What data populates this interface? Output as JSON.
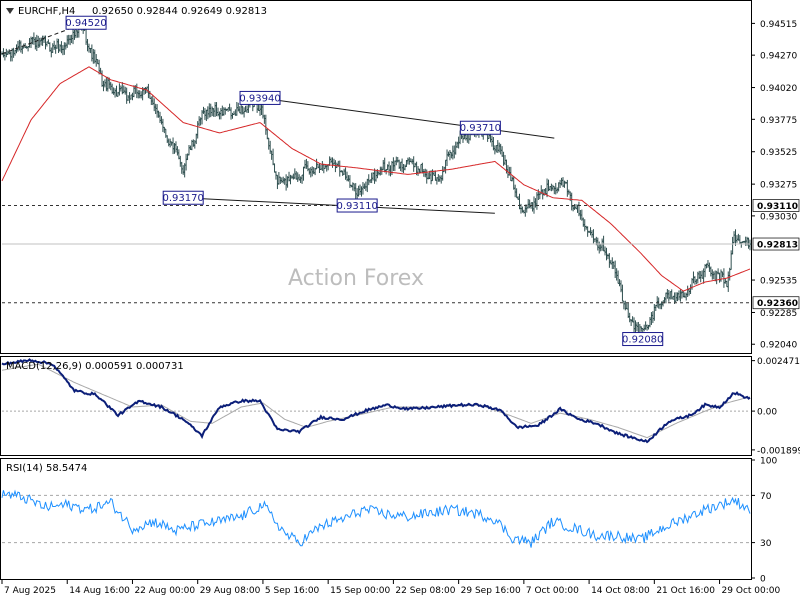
{
  "header": {
    "symbol": "EURCHF,H4",
    "ohlc": "0.92650 0.92844 0.92649 0.92813"
  },
  "watermark": "Action Forex",
  "colors": {
    "candle": "#2f4f4f",
    "ma": "#d62728",
    "macd_line": "#0b1e78",
    "macd_signal": "#a9a9a9",
    "rsi": "#1e90ff",
    "annotation": "#1a1a8c",
    "trendline": "#1a1a1a",
    "grid": "#a6a6a6"
  },
  "chart_data": [
    {
      "type": "candlestick",
      "title": "EURCHF,H4",
      "ylim": [
        0.9198,
        0.9468
      ],
      "y_ticks": [
        "0.94515",
        "0.94270",
        "0.94020",
        "0.93775",
        "0.93525",
        "0.93275",
        "0.93030",
        "0.92535",
        "0.92285",
        "0.92040"
      ],
      "x_ticks": [
        "7 Aug 2025",
        "14 Aug 16:00",
        "22 Aug 00:00",
        "29 Aug 08:00",
        "5 Sep 16:00",
        "15 Sep 00:00",
        "22 Sep 08:00",
        "29 Sep 16:00",
        "7 Oct 00:00",
        "14 Oct 08:00",
        "21 Oct 16:00",
        "29 Oct 00:00"
      ],
      "x_tick_index": [
        0,
        45,
        90,
        135,
        180,
        225,
        270,
        315,
        360,
        405,
        450,
        495
      ],
      "num_bars": 517,
      "path_anchors": [
        [
          0,
          0.9425
        ],
        [
          20,
          0.9438
        ],
        [
          40,
          0.9432
        ],
        [
          55,
          0.9449
        ],
        [
          70,
          0.9405
        ],
        [
          85,
          0.9395
        ],
        [
          100,
          0.94
        ],
        [
          115,
          0.9362
        ],
        [
          125,
          0.934
        ],
        [
          140,
          0.9385
        ],
        [
          160,
          0.9382
        ],
        [
          178,
          0.939
        ],
        [
          190,
          0.9328
        ],
        [
          210,
          0.9338
        ],
        [
          230,
          0.9345
        ],
        [
          245,
          0.932
        ],
        [
          260,
          0.9338
        ],
        [
          280,
          0.9345
        ],
        [
          300,
          0.933
        ],
        [
          315,
          0.9362
        ],
        [
          330,
          0.937
        ],
        [
          345,
          0.935
        ],
        [
          360,
          0.9305
        ],
        [
          375,
          0.9325
        ],
        [
          387,
          0.9328
        ],
        [
          400,
          0.93
        ],
        [
          420,
          0.927
        ],
        [
          432,
          0.9225
        ],
        [
          442,
          0.9212
        ],
        [
          455,
          0.924
        ],
        [
          470,
          0.9242
        ],
        [
          485,
          0.9262
        ],
        [
          500,
          0.9252
        ],
        [
          505,
          0.9285
        ],
        [
          516,
          0.9281
        ]
      ],
      "moving_average_anchors": [
        [
          0,
          0.933
        ],
        [
          20,
          0.9377
        ],
        [
          40,
          0.9405
        ],
        [
          60,
          0.9418
        ],
        [
          75,
          0.9408
        ],
        [
          100,
          0.94
        ],
        [
          125,
          0.9375
        ],
        [
          150,
          0.9367
        ],
        [
          178,
          0.9375
        ],
        [
          200,
          0.9355
        ],
        [
          220,
          0.9343
        ],
        [
          245,
          0.934
        ],
        [
          280,
          0.9335
        ],
        [
          310,
          0.9339
        ],
        [
          340,
          0.9345
        ],
        [
          360,
          0.9327
        ],
        [
          380,
          0.9317
        ],
        [
          400,
          0.9315
        ],
        [
          420,
          0.9297
        ],
        [
          440,
          0.9275
        ],
        [
          455,
          0.9257
        ],
        [
          470,
          0.9245
        ],
        [
          485,
          0.9252
        ],
        [
          500,
          0.9255
        ],
        [
          516,
          0.9262
        ]
      ],
      "current_price": "0.92813",
      "horizontal_levels": [
        {
          "label": "0.93110",
          "value": 0.9311
        },
        {
          "label": "0.92360",
          "value": 0.9236
        }
      ],
      "annotations": [
        {
          "label": "0.94520",
          "index": 58,
          "value": 0.9452
        },
        {
          "label": "0.93940",
          "index": 178,
          "value": 0.9394
        },
        {
          "label": "0.93710",
          "index": 330,
          "value": 0.9371
        },
        {
          "label": "0.93170",
          "index": 125,
          "value": 0.9317
        },
        {
          "label": "0.93110",
          "index": 245,
          "value": 0.9311
        },
        {
          "label": "0.92080",
          "index": 442,
          "value": 0.9208
        }
      ],
      "trendlines": [
        {
          "from": [
            0,
            0.9428
          ],
          "to": [
            58,
            0.9452
          ],
          "dashed": true
        },
        {
          "from": [
            178,
            0.9394
          ],
          "to": [
            381,
            0.9363
          ],
          "dashed": false
        },
        {
          "from": [
            125,
            0.9317
          ],
          "to": [
            340,
            0.9305
          ],
          "dashed": false
        }
      ]
    },
    {
      "type": "line",
      "title": "MACD(12,26,9) 0.000591 0.000731",
      "ylim": [
        -0.0021,
        0.0026
      ],
      "y_ticks": [
        "0.002471",
        "0.00",
        "-0.001899"
      ],
      "series": [
        {
          "name": "MACD",
          "anchors": [
            [
              0,
              0.0023
            ],
            [
              20,
              0.0025
            ],
            [
              35,
              0.0023
            ],
            [
              50,
              0.001
            ],
            [
              65,
              0.0008
            ],
            [
              80,
              -0.0002
            ],
            [
              95,
              0.0005
            ],
            [
              110,
              0.0002
            ],
            [
              125,
              -0.0004
            ],
            [
              138,
              -0.0012
            ],
            [
              150,
              0.0002
            ],
            [
              165,
              0.0005
            ],
            [
              178,
              0.0005
            ],
            [
              190,
              -0.0009
            ],
            [
              205,
              -0.001
            ],
            [
              220,
              -0.0003
            ],
            [
              235,
              -0.0004
            ],
            [
              250,
              0.0
            ],
            [
              265,
              0.0003
            ],
            [
              280,
              0.0001
            ],
            [
              300,
              0.0002
            ],
            [
              315,
              0.0003
            ],
            [
              330,
              0.0003
            ],
            [
              345,
              0.0
            ],
            [
              355,
              -0.0008
            ],
            [
              370,
              -0.0007
            ],
            [
              385,
              0.0001
            ],
            [
              398,
              -0.0004
            ],
            [
              410,
              -0.0006
            ],
            [
              425,
              -0.0011
            ],
            [
              445,
              -0.0015
            ],
            [
              460,
              -0.0005
            ],
            [
              475,
              -0.0002
            ],
            [
              485,
              0.0003
            ],
            [
              495,
              0.0002
            ],
            [
              505,
              0.0009
            ],
            [
              516,
              0.0006
            ]
          ]
        },
        {
          "name": "Signal",
          "anchors": [
            [
              0,
              0.002
            ],
            [
              25,
              0.0023
            ],
            [
              50,
              0.0014
            ],
            [
              70,
              0.0008
            ],
            [
              90,
              0.0002
            ],
            [
              110,
              0.0003
            ],
            [
              130,
              -0.0005
            ],
            [
              145,
              -0.0006
            ],
            [
              165,
              0.0002
            ],
            [
              180,
              0.0004
            ],
            [
              195,
              -0.0004
            ],
            [
              210,
              -0.0008
            ],
            [
              225,
              -0.0005
            ],
            [
              245,
              -0.0002
            ],
            [
              270,
              0.0002
            ],
            [
              300,
              0.0002
            ],
            [
              330,
              0.0003
            ],
            [
              350,
              -0.0002
            ],
            [
              365,
              -0.0006
            ],
            [
              385,
              -0.0001
            ],
            [
              405,
              -0.0004
            ],
            [
              425,
              -0.0008
            ],
            [
              445,
              -0.0013
            ],
            [
              465,
              -0.0006
            ],
            [
              485,
              0.0
            ],
            [
              500,
              0.0004
            ],
            [
              516,
              0.0007
            ]
          ]
        }
      ]
    },
    {
      "type": "line",
      "title": "RSI(14) 58.5474",
      "ylim": [
        0,
        100
      ],
      "y_ticks": [
        "100",
        "70",
        "30",
        "0"
      ],
      "levels": [
        70,
        30
      ],
      "series": [
        {
          "name": "RSI",
          "anchors": [
            [
              0,
              72
            ],
            [
              15,
              68
            ],
            [
              30,
              60
            ],
            [
              45,
              62
            ],
            [
              60,
              58
            ],
            [
              75,
              64
            ],
            [
              90,
              42
            ],
            [
              105,
              48
            ],
            [
              120,
              40
            ],
            [
              135,
              45
            ],
            [
              150,
              48
            ],
            [
              165,
              52
            ],
            [
              180,
              62
            ],
            [
              195,
              38
            ],
            [
              205,
              30
            ],
            [
              220,
              44
            ],
            [
              235,
              50
            ],
            [
              250,
              58
            ],
            [
              265,
              54
            ],
            [
              280,
              52
            ],
            [
              295,
              55
            ],
            [
              310,
              58
            ],
            [
              325,
              55
            ],
            [
              340,
              50
            ],
            [
              352,
              34
            ],
            [
              365,
              30
            ],
            [
              380,
              48
            ],
            [
              395,
              42
            ],
            [
              410,
              36
            ],
            [
              425,
              36
            ],
            [
              440,
              32
            ],
            [
              455,
              42
            ],
            [
              470,
              50
            ],
            [
              485,
              58
            ],
            [
              495,
              62
            ],
            [
              505,
              66
            ],
            [
              516,
              58
            ]
          ]
        }
      ]
    }
  ]
}
